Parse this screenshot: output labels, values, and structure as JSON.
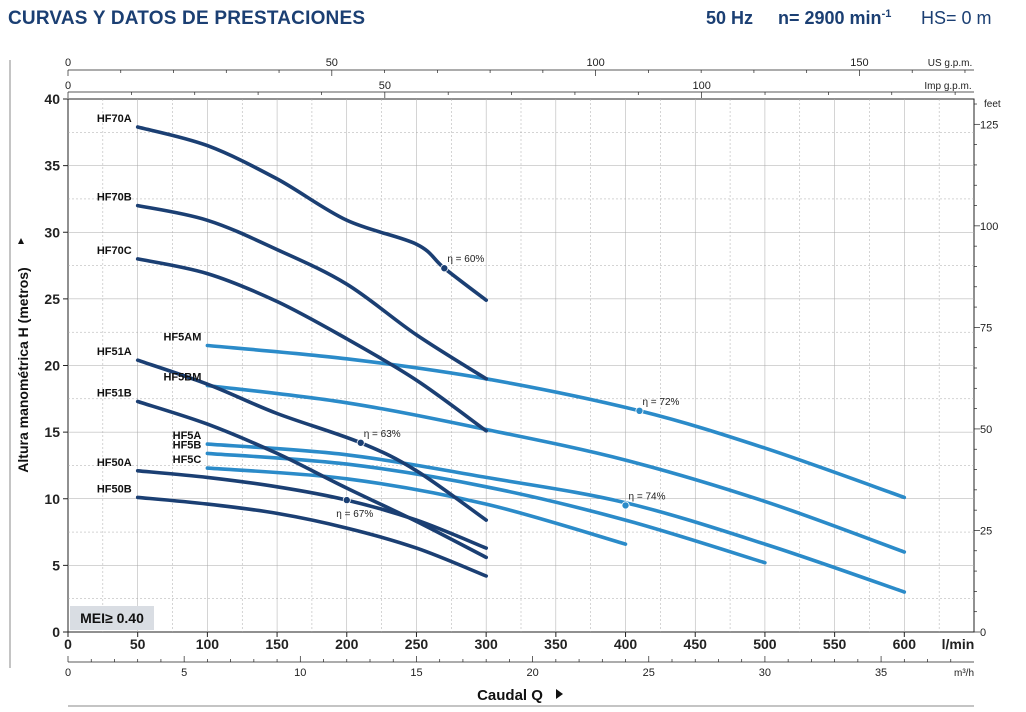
{
  "header": {
    "title": "CURVAS Y DATOS DE PRESTACIONES",
    "freq": "50 Hz",
    "speed_prefix": "n= 2900 min",
    "speed_sup": "-1",
    "hs": "HS= 0 m"
  },
  "mei_label": "MEI≥ 0.40",
  "colors": {
    "dark": "#1b3f73",
    "light": "#2b8bc9",
    "grid": "#a9a9a9",
    "axis": "#222222"
  },
  "chart_data": {
    "type": "line",
    "xlabel": "Caudal Q",
    "ylabel": "Altura manométrica H (metros)",
    "x_unit_label": "l/min",
    "xlim": [
      0,
      650
    ],
    "ylim": [
      0,
      40
    ],
    "x_ticks": [
      0,
      50,
      100,
      150,
      200,
      250,
      300,
      350,
      400,
      450,
      500,
      550,
      600
    ],
    "y_ticks": [
      0,
      5,
      10,
      15,
      20,
      25,
      30,
      35,
      40
    ],
    "grid": true,
    "secondary_axes": {
      "m3h": {
        "label": "m³/h",
        "ticks": [
          0,
          5,
          10,
          15,
          20,
          25,
          30,
          35
        ]
      },
      "us_gpm": {
        "label": "US g.p.m.",
        "ticks": [
          0,
          50,
          100,
          150
        ]
      },
      "imp_gpm": {
        "label": "Imp g.p.m.",
        "ticks": [
          0,
          50,
          100
        ]
      },
      "feet": {
        "label": "feet",
        "ticks": [
          0,
          25,
          50,
          75,
          100,
          125
        ]
      }
    },
    "series": [
      {
        "name": "HF70A",
        "color": "dark",
        "x": [
          50,
          100,
          150,
          200,
          250,
          270,
          300
        ],
        "y": [
          37.9,
          36.5,
          34.0,
          30.9,
          29.1,
          27.3,
          24.9
        ]
      },
      {
        "name": "HF70B",
        "color": "dark",
        "x": [
          50,
          100,
          150,
          200,
          250,
          300
        ],
        "y": [
          32.0,
          30.9,
          28.7,
          26.1,
          22.3,
          19.0
        ]
      },
      {
        "name": "HF70C",
        "color": "dark",
        "x": [
          50,
          100,
          150,
          200,
          250,
          300
        ],
        "y": [
          28.0,
          26.9,
          24.8,
          22.0,
          18.9,
          15.1
        ]
      },
      {
        "name": "HF51A",
        "color": "dark",
        "x": [
          50,
          100,
          150,
          210,
          250,
          300
        ],
        "y": [
          20.4,
          18.6,
          16.4,
          14.2,
          12.1,
          8.4
        ]
      },
      {
        "name": "HF51B",
        "color": "dark",
        "x": [
          50,
          100,
          150,
          200,
          250,
          300
        ],
        "y": [
          17.3,
          15.6,
          13.4,
          10.8,
          8.3,
          5.6
        ]
      },
      {
        "name": "HF50A",
        "color": "dark",
        "x": [
          50,
          100,
          150,
          200,
          250,
          300
        ],
        "y": [
          12.1,
          11.6,
          10.9,
          9.9,
          8.4,
          6.3
        ]
      },
      {
        "name": "HF50B",
        "color": "dark",
        "x": [
          50,
          100,
          150,
          200,
          250,
          300
        ],
        "y": [
          10.1,
          9.6,
          8.9,
          7.8,
          6.3,
          4.2
        ]
      },
      {
        "name": "HF5AM",
        "color": "light",
        "x": [
          100,
          200,
          300,
          410,
          500,
          600
        ],
        "y": [
          21.5,
          20.5,
          19.0,
          16.6,
          13.8,
          10.1
        ]
      },
      {
        "name": "HF5BM",
        "color": "light",
        "x": [
          100,
          200,
          300,
          400,
          500,
          600
        ],
        "y": [
          18.5,
          17.2,
          15.2,
          12.9,
          9.8,
          6.0
        ]
      },
      {
        "name": "HF5A",
        "color": "light",
        "x": [
          100,
          200,
          300,
          400,
          500,
          600
        ],
        "y": [
          14.1,
          13.3,
          11.6,
          9.7,
          6.6,
          3.0
        ]
      },
      {
        "name": "HF5B",
        "color": "light",
        "x": [
          100,
          200,
          300,
          400,
          500
        ],
        "y": [
          13.4,
          12.6,
          10.9,
          8.4,
          5.2
        ]
      },
      {
        "name": "HF5C",
        "color": "light",
        "x": [
          100,
          200,
          300,
          400
        ],
        "y": [
          12.3,
          11.5,
          9.6,
          6.6
        ]
      }
    ],
    "annotations": [
      {
        "text": "η = 60%",
        "x": 270,
        "y": 27.3,
        "color": "dark"
      },
      {
        "text": "η = 63%",
        "x": 210,
        "y": 14.2,
        "color": "dark"
      },
      {
        "text": "η = 67%",
        "x": 200,
        "y": 9.9,
        "color": "dark"
      },
      {
        "text": "η = 72%",
        "x": 410,
        "y": 16.6,
        "color": "light"
      },
      {
        "text": "η = 74%",
        "x": 400,
        "y": 9.5,
        "color": "light"
      }
    ]
  }
}
